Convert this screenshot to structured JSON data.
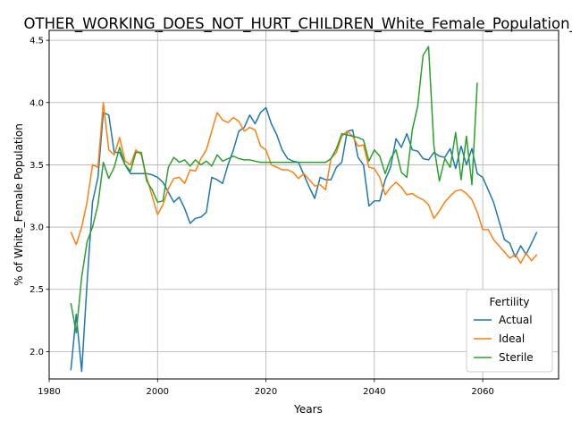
{
  "chart_data": {
    "type": "line",
    "title": "OTHER_WORKING_DOES_NOT_HURT_CHILDREN_White_Female_Population_sc",
    "xlabel": "Years",
    "ylabel": "% of White_Female Population",
    "xlim": [
      1980,
      2074
    ],
    "ylim": [
      1.78,
      4.58
    ],
    "x_ticks": [
      1980,
      2000,
      2020,
      2040,
      2060
    ],
    "y_ticks": [
      2.0,
      2.5,
      3.0,
      3.5,
      4.0,
      4.5
    ],
    "x_tick_labels": [
      "1980",
      "2000",
      "2020",
      "2040",
      "2060"
    ],
    "y_tick_labels": [
      "2.0",
      "2.5",
      "3.0",
      "3.5",
      "4.0",
      "4.5"
    ],
    "grid": true,
    "legend": {
      "title": "Fertility",
      "position": "lower right"
    },
    "series": [
      {
        "name": "Actual",
        "color": "#1f77b4",
        "points": [
          [
            1984,
            1.85
          ],
          [
            1985,
            2.3
          ],
          [
            1986,
            1.84
          ],
          [
            1987,
            2.55
          ],
          [
            1988,
            3.2
          ],
          [
            1989,
            3.4
          ],
          [
            1990,
            3.92
          ],
          [
            1991,
            3.9
          ],
          [
            1992,
            3.6
          ],
          [
            1993,
            3.6
          ],
          [
            1994,
            3.5
          ],
          [
            1995,
            3.43
          ],
          [
            1996,
            3.43
          ],
          [
            1997,
            3.43
          ],
          [
            1998,
            3.43
          ],
          [
            1999,
            3.42
          ],
          [
            2000,
            3.4
          ],
          [
            2001,
            3.36
          ],
          [
            2002,
            3.28
          ],
          [
            2003,
            3.2
          ],
          [
            2004,
            3.24
          ],
          [
            2005,
            3.15
          ],
          [
            2006,
            3.03
          ],
          [
            2007,
            3.07
          ],
          [
            2008,
            3.08
          ],
          [
            2009,
            3.12
          ],
          [
            2010,
            3.4
          ],
          [
            2011,
            3.38
          ],
          [
            2012,
            3.35
          ],
          [
            2013,
            3.5
          ],
          [
            2014,
            3.62
          ],
          [
            2015,
            3.77
          ],
          [
            2016,
            3.8
          ],
          [
            2017,
            3.9
          ],
          [
            2018,
            3.83
          ],
          [
            2019,
            3.92
          ],
          [
            2020,
            3.96
          ],
          [
            2021,
            3.83
          ],
          [
            2022,
            3.74
          ],
          [
            2023,
            3.62
          ],
          [
            2024,
            3.55
          ],
          [
            2025,
            3.53
          ],
          [
            2026,
            3.52
          ],
          [
            2027,
            3.42
          ],
          [
            2028,
            3.32
          ],
          [
            2029,
            3.23
          ],
          [
            2030,
            3.4
          ],
          [
            2031,
            3.38
          ],
          [
            2032,
            3.38
          ],
          [
            2033,
            3.48
          ],
          [
            2034,
            3.52
          ],
          [
            2035,
            3.77
          ],
          [
            2036,
            3.78
          ],
          [
            2037,
            3.56
          ],
          [
            2038,
            3.5
          ],
          [
            2039,
            3.17
          ],
          [
            2040,
            3.21
          ],
          [
            2041,
            3.21
          ],
          [
            2042,
            3.38
          ],
          [
            2043,
            3.48
          ],
          [
            2044,
            3.71
          ],
          [
            2045,
            3.64
          ],
          [
            2046,
            3.75
          ],
          [
            2047,
            3.62
          ],
          [
            2048,
            3.61
          ],
          [
            2049,
            3.55
          ],
          [
            2050,
            3.54
          ],
          [
            2051,
            3.6
          ],
          [
            2052,
            3.57
          ],
          [
            2053,
            3.56
          ],
          [
            2054,
            3.63
          ],
          [
            2055,
            3.47
          ],
          [
            2056,
            3.65
          ],
          [
            2057,
            3.5
          ],
          [
            2058,
            3.63
          ],
          [
            2059,
            3.43
          ],
          [
            2060,
            3.4
          ],
          [
            2061,
            3.3
          ],
          [
            2062,
            3.2
          ],
          [
            2063,
            3.05
          ],
          [
            2064,
            2.9
          ],
          [
            2065,
            2.87
          ],
          [
            2066,
            2.76
          ],
          [
            2067,
            2.85
          ],
          [
            2068,
            2.78
          ],
          [
            2069,
            2.87
          ],
          [
            2070,
            2.96
          ]
        ]
      },
      {
        "name": "Ideal",
        "color": "#ff7f0e",
        "points": [
          [
            1984,
            2.96
          ],
          [
            1985,
            2.86
          ],
          [
            1986,
            3.0
          ],
          [
            1987,
            3.2
          ],
          [
            1988,
            3.5
          ],
          [
            1989,
            3.48
          ],
          [
            1990,
            4.0
          ],
          [
            1991,
            3.62
          ],
          [
            1992,
            3.58
          ],
          [
            1993,
            3.72
          ],
          [
            1994,
            3.53
          ],
          [
            1995,
            3.5
          ],
          [
            1996,
            3.62
          ],
          [
            1997,
            3.58
          ],
          [
            1998,
            3.4
          ],
          [
            1999,
            3.25
          ],
          [
            2000,
            3.1
          ],
          [
            2001,
            3.18
          ],
          [
            2002,
            3.31
          ],
          [
            2003,
            3.39
          ],
          [
            2004,
            3.4
          ],
          [
            2005,
            3.35
          ],
          [
            2006,
            3.46
          ],
          [
            2007,
            3.45
          ],
          [
            2008,
            3.55
          ],
          [
            2009,
            3.62
          ],
          [
            2010,
            3.77
          ],
          [
            2011,
            3.92
          ],
          [
            2012,
            3.86
          ],
          [
            2013,
            3.84
          ],
          [
            2014,
            3.88
          ],
          [
            2015,
            3.85
          ],
          [
            2016,
            3.77
          ],
          [
            2017,
            3.8
          ],
          [
            2018,
            3.78
          ],
          [
            2019,
            3.65
          ],
          [
            2020,
            3.62
          ],
          [
            2021,
            3.5
          ],
          [
            2022,
            3.48
          ],
          [
            2023,
            3.46
          ],
          [
            2024,
            3.46
          ],
          [
            2025,
            3.44
          ],
          [
            2026,
            3.39
          ],
          [
            2027,
            3.43
          ],
          [
            2028,
            3.38
          ],
          [
            2029,
            3.33
          ],
          [
            2030,
            3.34
          ],
          [
            2031,
            3.3
          ],
          [
            2032,
            3.55
          ],
          [
            2033,
            3.6
          ],
          [
            2034,
            3.73
          ],
          [
            2035,
            3.77
          ],
          [
            2036,
            3.73
          ],
          [
            2037,
            3.65
          ],
          [
            2038,
            3.66
          ],
          [
            2039,
            3.48
          ],
          [
            2040,
            3.47
          ],
          [
            2041,
            3.4
          ],
          [
            2042,
            3.26
          ],
          [
            2043,
            3.32
          ],
          [
            2044,
            3.36
          ],
          [
            2045,
            3.32
          ],
          [
            2046,
            3.26
          ],
          [
            2047,
            3.27
          ],
          [
            2048,
            3.24
          ],
          [
            2049,
            3.22
          ],
          [
            2050,
            3.18
          ],
          [
            2051,
            3.07
          ],
          [
            2052,
            3.13
          ],
          [
            2053,
            3.2
          ],
          [
            2054,
            3.25
          ],
          [
            2055,
            3.29
          ],
          [
            2056,
            3.3
          ],
          [
            2057,
            3.27
          ],
          [
            2058,
            3.22
          ],
          [
            2059,
            3.12
          ],
          [
            2060,
            2.98
          ],
          [
            2061,
            2.98
          ],
          [
            2062,
            2.9
          ],
          [
            2063,
            2.85
          ],
          [
            2064,
            2.8
          ],
          [
            2065,
            2.75
          ],
          [
            2066,
            2.78
          ],
          [
            2067,
            2.71
          ],
          [
            2068,
            2.79
          ],
          [
            2069,
            2.73
          ],
          [
            2070,
            2.78
          ]
        ]
      },
      {
        "name": "Sterile",
        "color": "#2ca02c",
        "points": [
          [
            1984,
            2.39
          ],
          [
            1985,
            2.15
          ],
          [
            1986,
            2.6
          ],
          [
            1987,
            2.88
          ],
          [
            1988,
            3.0
          ],
          [
            1989,
            3.18
          ],
          [
            1990,
            3.52
          ],
          [
            1991,
            3.39
          ],
          [
            1992,
            3.48
          ],
          [
            1993,
            3.64
          ],
          [
            1994,
            3.5
          ],
          [
            1995,
            3.45
          ],
          [
            1996,
            3.6
          ],
          [
            1997,
            3.6
          ],
          [
            1998,
            3.37
          ],
          [
            1999,
            3.3
          ],
          [
            2000,
            3.2
          ],
          [
            2001,
            3.21
          ],
          [
            2002,
            3.48
          ],
          [
            2003,
            3.56
          ],
          [
            2004,
            3.52
          ],
          [
            2005,
            3.54
          ],
          [
            2006,
            3.49
          ],
          [
            2007,
            3.54
          ],
          [
            2008,
            3.5
          ],
          [
            2009,
            3.53
          ],
          [
            2010,
            3.49
          ],
          [
            2011,
            3.58
          ],
          [
            2012,
            3.53
          ],
          [
            2013,
            3.55
          ],
          [
            2014,
            3.57
          ],
          [
            2015,
            3.55
          ],
          [
            2016,
            3.54
          ],
          [
            2017,
            3.54
          ],
          [
            2018,
            3.53
          ],
          [
            2019,
            3.52
          ],
          [
            2020,
            3.52
          ],
          [
            2021,
            3.52
          ],
          [
            2022,
            3.52
          ],
          [
            2023,
            3.52
          ],
          [
            2024,
            3.52
          ],
          [
            2025,
            3.52
          ],
          [
            2026,
            3.52
          ],
          [
            2027,
            3.52
          ],
          [
            2028,
            3.52
          ],
          [
            2029,
            3.52
          ],
          [
            2030,
            3.52
          ],
          [
            2031,
            3.52
          ],
          [
            2032,
            3.55
          ],
          [
            2033,
            3.63
          ],
          [
            2034,
            3.75
          ],
          [
            2035,
            3.74
          ],
          [
            2036,
            3.73
          ],
          [
            2037,
            3.72
          ],
          [
            2038,
            3.7
          ],
          [
            2039,
            3.53
          ],
          [
            2040,
            3.62
          ],
          [
            2041,
            3.57
          ],
          [
            2042,
            3.43
          ],
          [
            2043,
            3.55
          ],
          [
            2044,
            3.62
          ],
          [
            2045,
            3.44
          ],
          [
            2046,
            3.4
          ],
          [
            2047,
            3.78
          ],
          [
            2048,
            3.97
          ],
          [
            2049,
            4.38
          ],
          [
            2050,
            4.45
          ],
          [
            2051,
            3.65
          ],
          [
            2052,
            3.37
          ],
          [
            2053,
            3.55
          ],
          [
            2054,
            3.48
          ],
          [
            2055,
            3.76
          ],
          [
            2056,
            3.38
          ],
          [
            2057,
            3.73
          ],
          [
            2058,
            3.34
          ],
          [
            2059,
            4.16
          ]
        ]
      }
    ]
  }
}
